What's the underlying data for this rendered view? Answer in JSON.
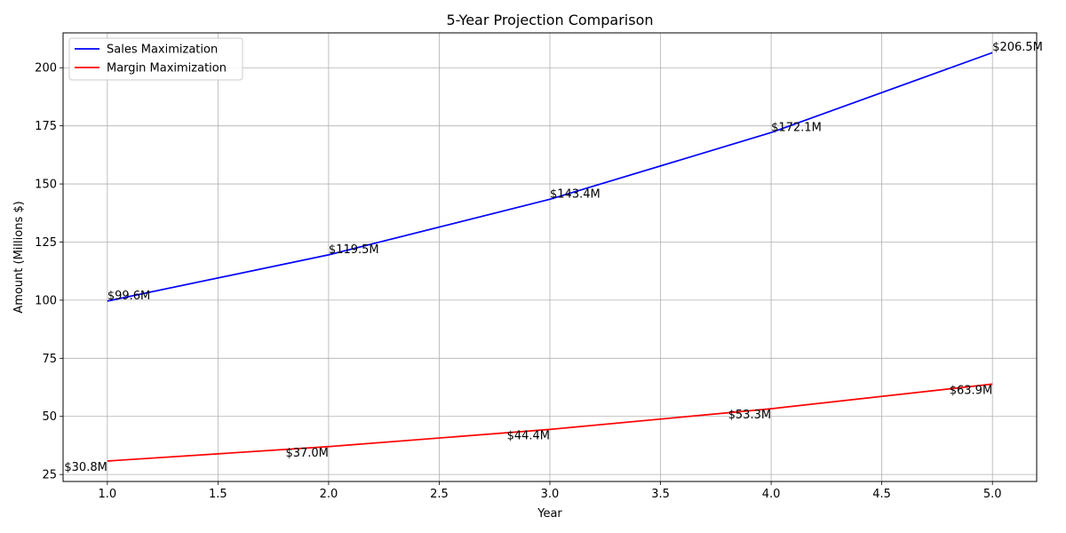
{
  "chart_data": {
    "type": "line",
    "title": "5-Year Projection Comparison",
    "xlabel": "Year",
    "ylabel": "Amount (Millions $)",
    "xlim": [
      0.8,
      5.2
    ],
    "ylim": [
      22,
      215
    ],
    "xticks": [
      1.0,
      1.5,
      2.0,
      2.5,
      3.0,
      3.5,
      4.0,
      4.5,
      5.0
    ],
    "xtick_labels": [
      "1.0",
      "1.5",
      "2.0",
      "2.5",
      "3.0",
      "3.5",
      "4.0",
      "4.5",
      "5.0"
    ],
    "yticks": [
      25,
      50,
      75,
      100,
      125,
      150,
      175,
      200
    ],
    "ytick_labels": [
      "25",
      "50",
      "75",
      "100",
      "125",
      "150",
      "175",
      "200"
    ],
    "grid": true,
    "legend_position": "top-left",
    "x": [
      1,
      2,
      3,
      4,
      5
    ],
    "series": [
      {
        "name": "Sales Maximization",
        "color": "#0000ff",
        "values": [
          99.6,
          119.5,
          143.4,
          172.1,
          206.5
        ],
        "labels": [
          "$99.6M",
          "$119.5M",
          "$143.4M",
          "$172.1M",
          "$206.5M"
        ]
      },
      {
        "name": "Margin Maximization",
        "color": "#ff0000",
        "values": [
          30.8,
          37.0,
          44.4,
          53.3,
          63.9
        ],
        "labels": [
          "$30.8M",
          "$37.0M",
          "$44.4M",
          "$53.3M",
          "$63.9M"
        ]
      }
    ]
  }
}
